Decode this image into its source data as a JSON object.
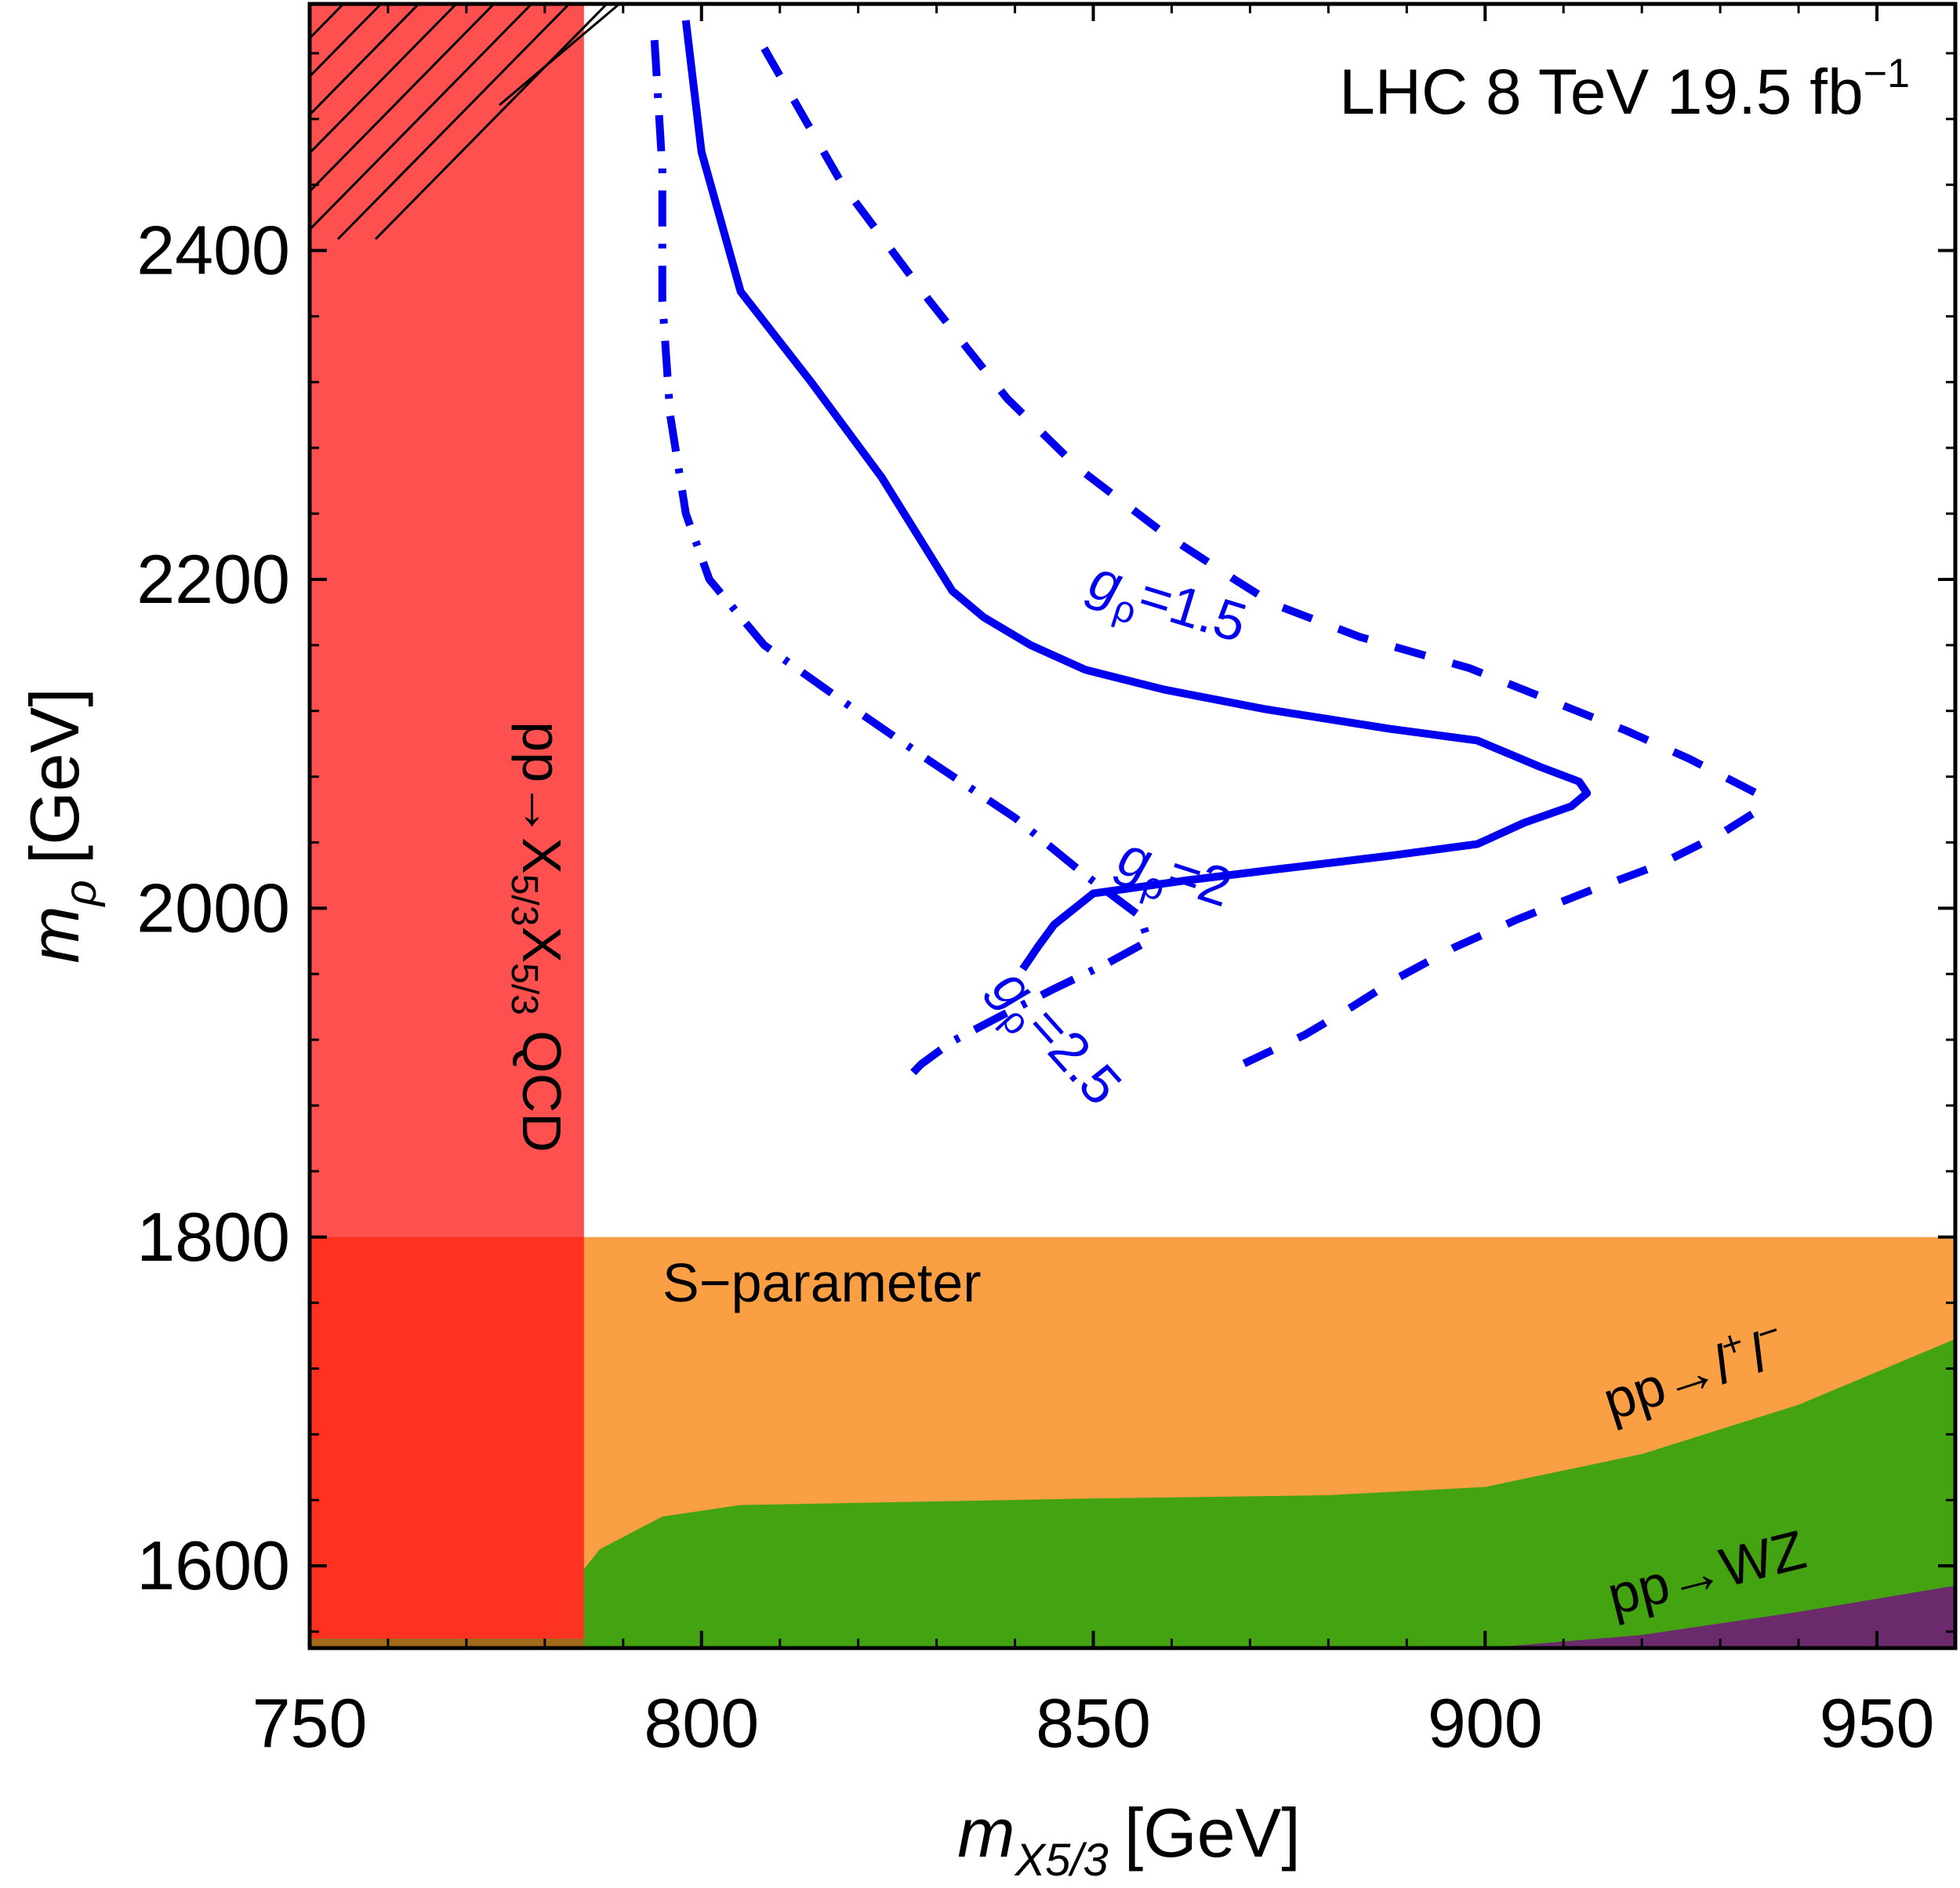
{
  "chart_data": {
    "type": "line",
    "annotation": {
      "main": "LHC 8 TeV 19.5 fb",
      "sup": "−1"
    },
    "xlabel": {
      "main": "m",
      "sub": "X5/3",
      "unit": "[GeV]"
    },
    "ylabel": {
      "main": "m",
      "sub": "ρ",
      "unit": "[GeV]"
    },
    "xlim": [
      750,
      960
    ],
    "ylim": [
      1550,
      2550
    ],
    "xticks": [
      750,
      800,
      850,
      900,
      950
    ],
    "yticks": [
      1600,
      1800,
      2000,
      2200,
      2400
    ],
    "grid": false,
    "colors": {
      "curve": "#0000ee",
      "qcd_region": "#ff4a4a",
      "overlap_region": "#ff2a14",
      "s_param_region": "#fb9f45",
      "dilepton_region": "#43a311",
      "wz_region": "#6b2a6b"
    },
    "series": [
      {
        "name": "gρ=1.5",
        "style": "dashed",
        "points": [
          [
            808,
            2523
          ],
          [
            818,
            2440
          ],
          [
            829,
            2370
          ],
          [
            839,
            2310
          ],
          [
            848,
            2268
          ],
          [
            859,
            2228
          ],
          [
            868,
            2200
          ],
          [
            873,
            2185
          ],
          [
            884,
            2165
          ],
          [
            898,
            2146
          ],
          [
            908,
            2127
          ],
          [
            918,
            2108
          ],
          [
            926,
            2091
          ],
          [
            935,
            2069
          ],
          [
            935,
            2060
          ],
          [
            930,
            2045
          ],
          [
            922,
            2026
          ],
          [
            913,
            2010
          ],
          [
            904,
            1993
          ],
          [
            896,
            1976
          ],
          [
            889,
            1958
          ],
          [
            883,
            1940
          ],
          [
            877,
            1923
          ],
          [
            869,
            1905
          ]
        ]
      },
      {
        "name": "gρ=2",
        "style": "solid",
        "points": [
          [
            798,
            2540
          ],
          [
            800,
            2460
          ],
          [
            805,
            2375
          ],
          [
            814,
            2320
          ],
          [
            823,
            2262
          ],
          [
            832,
            2193
          ],
          [
            836,
            2177
          ],
          [
            842,
            2160
          ],
          [
            849,
            2145
          ],
          [
            859,
            2133
          ],
          [
            872,
            2121
          ],
          [
            888,
            2109
          ],
          [
            899,
            2102
          ],
          [
            902,
            2096
          ],
          [
            907,
            2086
          ],
          [
            912,
            2077
          ],
          [
            913,
            2070
          ],
          [
            911,
            2062
          ],
          [
            905,
            2052
          ],
          [
            899,
            2039
          ],
          [
            888,
            2032
          ],
          [
            874,
            2024
          ],
          [
            862,
            2017
          ],
          [
            850,
            2009
          ],
          [
            845,
            1990
          ],
          [
            843,
            1977
          ],
          [
            841,
            1963
          ]
        ]
      },
      {
        "name": "gρ=2.5",
        "style": "dashdot",
        "points": [
          [
            794,
            2528
          ],
          [
            795,
            2450
          ],
          [
            795,
            2370
          ],
          [
            796,
            2300
          ],
          [
            798,
            2240
          ],
          [
            801,
            2200
          ],
          [
            808,
            2160
          ],
          [
            818,
            2126
          ],
          [
            829,
            2090
          ],
          [
            840,
            2055
          ],
          [
            849,
            2020
          ],
          [
            856,
            1995
          ],
          [
            857,
            1980
          ],
          [
            852,
            1967
          ],
          [
            845,
            1951
          ],
          [
            838,
            1934
          ],
          [
            832,
            1919
          ],
          [
            828,
            1905
          ],
          [
            826,
            1895
          ]
        ]
      }
    ],
    "curve_labels": [
      {
        "series": "gρ=1.5",
        "main": "g",
        "sub": "ρ",
        "value": "=1.5"
      },
      {
        "series": "gρ=2",
        "main": "g",
        "sub": "ρ",
        "value": "=2"
      },
      {
        "series": "gρ=2.5",
        "main": "g",
        "sub": "ρ",
        "value": "=2.5"
      }
    ],
    "regions": [
      {
        "name": "pp→X5/3X5/3 QCD",
        "label": {
          "pre": "pp→X",
          "sub1": "5/3",
          "mid": "X",
          "sub2": "5/3",
          "post": " QCD"
        },
        "x_max": 785
      },
      {
        "name": "S−parameter",
        "label": "S−parameter",
        "y_max": 1800
      },
      {
        "name": "pp→l+l−",
        "label": {
          "pre": "pp→",
          "l1": "l",
          "s1": "+",
          "l2": "l",
          "s2": "−"
        },
        "boundary": [
          [
            778,
            1550
          ],
          [
            782,
            1580
          ],
          [
            787,
            1610
          ],
          [
            795,
            1630
          ],
          [
            805,
            1637
          ],
          [
            850,
            1641
          ],
          [
            880,
            1643
          ],
          [
            900,
            1648
          ],
          [
            920,
            1668
          ],
          [
            940,
            1698
          ],
          [
            960,
            1738
          ]
        ]
      },
      {
        "name": "pp→WZ",
        "label": "pp→WZ",
        "boundary": [
          [
            900,
            1550
          ],
          [
            920,
            1558
          ],
          [
            940,
            1572
          ],
          [
            960,
            1588
          ]
        ]
      }
    ]
  }
}
